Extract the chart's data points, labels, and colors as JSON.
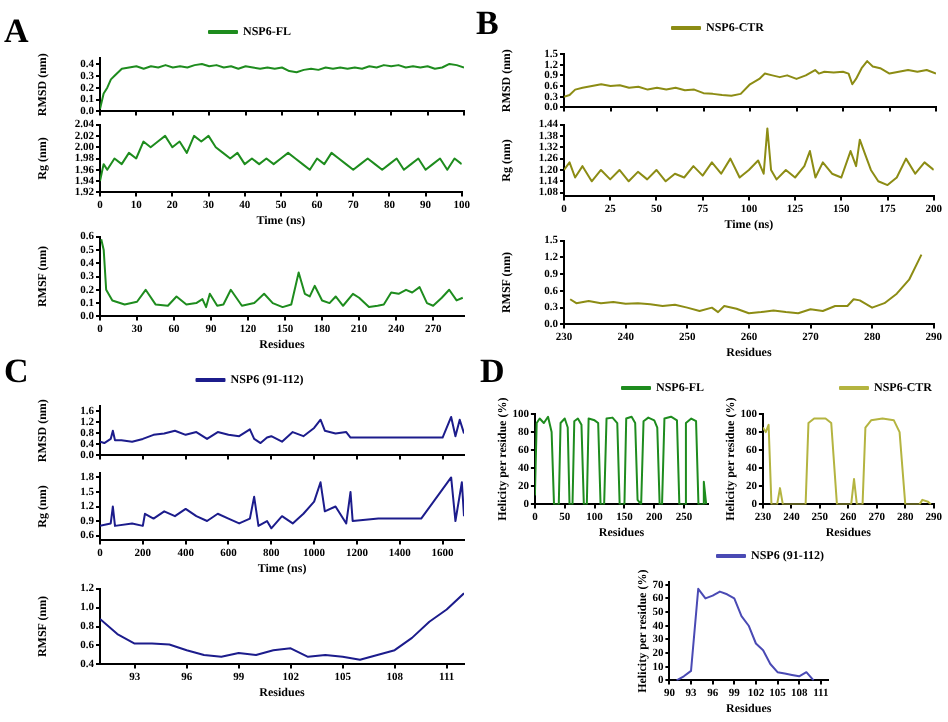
{
  "chart_data": [
    {
      "type": "line",
      "title": "A",
      "legend": "top",
      "tick_labels": "y",
      "ylabel": "RMSD (nm)",
      "xlim": [
        0,
        100
      ],
      "ylim": [
        0,
        0.45
      ],
      "xticks": [
        0,
        10,
        20,
        30,
        40,
        50,
        60,
        70,
        80,
        90,
        100
      ],
      "yticks": [
        {
          "value": 0,
          "label": "0.0"
        },
        0.1,
        0.2,
        0.3,
        0.4
      ],
      "x": [
        0,
        1,
        2,
        3,
        4,
        5,
        6,
        8,
        10,
        12,
        14,
        16,
        18,
        20,
        22,
        24,
        26,
        28,
        30,
        32,
        34,
        36,
        38,
        40,
        42,
        44,
        46,
        48,
        50,
        52,
        54,
        56,
        58,
        60,
        62,
        64,
        66,
        68,
        70,
        72,
        74,
        76,
        78,
        80,
        82,
        84,
        86,
        88,
        90,
        92,
        94,
        96,
        98,
        100
      ],
      "series": [
        {
          "name": "NSP6-FL",
          "color": "#1e8c1e",
          "values": [
            0.02,
            0.15,
            0.2,
            0.27,
            0.3,
            0.33,
            0.36,
            0.37,
            0.38,
            0.36,
            0.38,
            0.37,
            0.39,
            0.37,
            0.38,
            0.37,
            0.39,
            0.4,
            0.38,
            0.39,
            0.37,
            0.38,
            0.36,
            0.38,
            0.37,
            0.36,
            0.37,
            0.36,
            0.37,
            0.34,
            0.33,
            0.35,
            0.36,
            0.35,
            0.37,
            0.36,
            0.37,
            0.36,
            0.37,
            0.36,
            0.38,
            0.37,
            0.39,
            0.38,
            0.39,
            0.37,
            0.38,
            0.37,
            0.38,
            0.36,
            0.37,
            0.4,
            0.39,
            0.37
          ]
        }
      ]
    },
    {
      "type": "line",
      "ylabel": "Rg (nm)",
      "xlabel": "Time (ns)",
      "xlim": [
        0,
        100
      ],
      "xticks": [
        0,
        10,
        20,
        30,
        40,
        50,
        60,
        70,
        80,
        90,
        100
      ],
      "ylim": [
        1.92,
        2.04
      ],
      "yticks": [
        1.92,
        1.94,
        1.96,
        1.98,
        {
          "value": 2,
          "label": "2.00"
        },
        2.02,
        2.04
      ],
      "x": [
        0,
        1,
        2,
        4,
        6,
        8,
        10,
        12,
        14,
        16,
        18,
        20,
        22,
        24,
        26,
        28,
        30,
        32,
        34,
        36,
        38,
        40,
        42,
        44,
        46,
        48,
        50,
        52,
        54,
        56,
        58,
        60,
        62,
        64,
        66,
        68,
        70,
        72,
        74,
        76,
        78,
        80,
        82,
        84,
        86,
        88,
        90,
        92,
        94,
        96,
        98,
        100
      ],
      "series": [
        {
          "color": "#1e8c1e",
          "values": [
            1.94,
            1.97,
            1.96,
            1.98,
            1.97,
            1.99,
            1.98,
            2.01,
            2.0,
            2.01,
            2.02,
            2.0,
            2.01,
            1.99,
            2.02,
            2.01,
            2.02,
            2.0,
            1.99,
            1.98,
            1.99,
            1.97,
            1.98,
            1.97,
            1.98,
            1.97,
            1.98,
            1.99,
            1.98,
            1.97,
            1.96,
            1.98,
            1.97,
            1.99,
            1.98,
            1.97,
            1.96,
            1.97,
            1.98,
            1.97,
            1.96,
            1.97,
            1.98,
            1.96,
            1.97,
            1.98,
            1.96,
            1.97,
            1.98,
            1.96,
            1.98,
            1.97
          ]
        }
      ]
    },
    {
      "type": "line",
      "ylabel": "RMSF (nm)",
      "xlabel": "Residues",
      "xlim": [
        0,
        295
      ],
      "xticks": [
        0,
        30,
        60,
        90,
        120,
        150,
        180,
        210,
        240,
        270
      ],
      "ylim": [
        0,
        0.6
      ],
      "yticks": [
        {
          "value": 0,
          "label": "0.0"
        },
        0.1,
        0.2,
        0.3,
        0.4,
        0.5,
        0.6
      ],
      "x": [
        1,
        3,
        5,
        10,
        20,
        30,
        37,
        45,
        55,
        62,
        70,
        78,
        83,
        86,
        89,
        95,
        100,
        106,
        115,
        125,
        133,
        140,
        148,
        155,
        161,
        166,
        170,
        174,
        180,
        186,
        191,
        197,
        205,
        210,
        218,
        225,
        230,
        236,
        242,
        248,
        253,
        259,
        265,
        270,
        277,
        283,
        289,
        294
      ],
      "series": [
        {
          "color": "#1e8c1e",
          "values": [
            0.58,
            0.5,
            0.2,
            0.12,
            0.09,
            0.11,
            0.2,
            0.09,
            0.08,
            0.15,
            0.09,
            0.1,
            0.13,
            0.07,
            0.17,
            0.08,
            0.09,
            0.2,
            0.08,
            0.1,
            0.17,
            0.1,
            0.07,
            0.09,
            0.33,
            0.17,
            0.15,
            0.23,
            0.12,
            0.1,
            0.15,
            0.08,
            0.17,
            0.14,
            0.07,
            0.08,
            0.09,
            0.18,
            0.17,
            0.2,
            0.18,
            0.22,
            0.1,
            0.08,
            0.14,
            0.2,
            0.12,
            0.14
          ]
        }
      ]
    },
    {
      "type": "line",
      "title": "B",
      "legend": "top",
      "tick_labels": "y",
      "ylabel": "RMSD (nm)",
      "xlim": [
        0,
        200
      ],
      "xticks": [
        0,
        25,
        50,
        75,
        100,
        125,
        150,
        175,
        200
      ],
      "ylim": [
        0,
        1.5
      ],
      "yticks": [
        {
          "value": 0,
          "label": "0.0"
        },
        0.3,
        0.6,
        0.9,
        1.2,
        1.5
      ],
      "x": [
        0,
        3,
        6,
        10,
        15,
        20,
        25,
        30,
        35,
        40,
        45,
        50,
        55,
        60,
        65,
        70,
        75,
        80,
        85,
        90,
        95,
        100,
        105,
        108,
        112,
        116,
        120,
        125,
        130,
        135,
        137,
        140,
        145,
        150,
        153,
        155,
        157,
        160,
        163,
        166,
        170,
        175,
        180,
        185,
        190,
        195,
        200
      ],
      "series": [
        {
          "name": "NSP6-CTR",
          "color": "#8c8c14",
          "values": [
            0.3,
            0.35,
            0.5,
            0.55,
            0.6,
            0.65,
            0.6,
            0.62,
            0.55,
            0.58,
            0.5,
            0.55,
            0.5,
            0.55,
            0.48,
            0.5,
            0.4,
            0.38,
            0.35,
            0.33,
            0.38,
            0.65,
            0.8,
            0.95,
            0.9,
            0.85,
            0.9,
            0.8,
            0.9,
            1.05,
            0.95,
            1.0,
            0.98,
            1.0,
            0.95,
            0.65,
            0.8,
            1.1,
            1.3,
            1.15,
            1.1,
            0.95,
            1.0,
            1.05,
            1.0,
            1.05,
            0.95
          ]
        }
      ]
    },
    {
      "type": "line",
      "ylabel": "Rg (nm)",
      "xlabel": "Time (ns)",
      "xlim": [
        0,
        200
      ],
      "xticks": [
        0,
        25,
        50,
        75,
        100,
        125,
        150,
        175,
        200
      ],
      "ylim": [
        1.06,
        1.44
      ],
      "yticks": [
        1.08,
        1.14,
        {
          "value": 1.2,
          "label": "1.20"
        },
        1.26,
        1.32,
        1.38,
        1.44
      ],
      "x": [
        0,
        3,
        6,
        10,
        15,
        20,
        25,
        30,
        35,
        40,
        45,
        50,
        55,
        60,
        65,
        70,
        75,
        80,
        85,
        90,
        95,
        100,
        105,
        108,
        110,
        112,
        115,
        120,
        125,
        130,
        133,
        136,
        140,
        145,
        150,
        155,
        158,
        160,
        163,
        166,
        170,
        175,
        180,
        185,
        190,
        195,
        200
      ],
      "series": [
        {
          "color": "#8c8c14",
          "values": [
            1.2,
            1.24,
            1.16,
            1.22,
            1.14,
            1.2,
            1.15,
            1.2,
            1.14,
            1.19,
            1.15,
            1.2,
            1.14,
            1.18,
            1.16,
            1.22,
            1.17,
            1.24,
            1.18,
            1.26,
            1.16,
            1.2,
            1.25,
            1.18,
            1.42,
            1.2,
            1.15,
            1.2,
            1.16,
            1.22,
            1.3,
            1.16,
            1.24,
            1.18,
            1.16,
            1.3,
            1.22,
            1.36,
            1.28,
            1.2,
            1.14,
            1.12,
            1.16,
            1.26,
            1.18,
            1.24,
            1.2
          ]
        }
      ]
    },
    {
      "type": "line",
      "ylabel": "RMSF (nm)",
      "xlabel": "Residues",
      "xlim": [
        230,
        290
      ],
      "xticks": [
        230,
        240,
        250,
        260,
        270,
        280,
        290
      ],
      "ylim": [
        0,
        1.5
      ],
      "yticks": [
        {
          "value": 0,
          "label": "0.0"
        },
        0.3,
        0.6,
        0.9,
        1.2,
        1.5
      ],
      "x": [
        231,
        232,
        234,
        236,
        238,
        240,
        242,
        244,
        246,
        248,
        250,
        252,
        254,
        255,
        256,
        258,
        260,
        262,
        264,
        266,
        268,
        270,
        272,
        274,
        276,
        277,
        278,
        280,
        282,
        284,
        286,
        288
      ],
      "series": [
        {
          "color": "#8c8c14",
          "values": [
            0.45,
            0.38,
            0.42,
            0.38,
            0.4,
            0.37,
            0.38,
            0.36,
            0.33,
            0.35,
            0.3,
            0.24,
            0.3,
            0.22,
            0.33,
            0.28,
            0.2,
            0.22,
            0.25,
            0.22,
            0.2,
            0.27,
            0.24,
            0.33,
            0.33,
            0.45,
            0.43,
            0.3,
            0.38,
            0.55,
            0.8,
            1.25
          ]
        }
      ]
    },
    {
      "type": "line",
      "title": "C",
      "legend": "top",
      "tick_labels": "y",
      "ylabel": "RMSD (nm)",
      "xlim": [
        0,
        1700
      ],
      "xticks": [
        0,
        200,
        400,
        600,
        800,
        1000,
        1200,
        1400,
        1600
      ],
      "ylim": [
        0,
        1.8
      ],
      "yticks": [
        {
          "value": 0,
          "label": "0.0"
        },
        0.4,
        0.8,
        1.2,
        1.6
      ],
      "x": [
        0,
        20,
        50,
        60,
        70,
        100,
        150,
        200,
        250,
        300,
        350,
        400,
        450,
        500,
        550,
        600,
        650,
        700,
        720,
        750,
        780,
        800,
        850,
        900,
        950,
        1000,
        1030,
        1050,
        1100,
        1150,
        1170,
        1200,
        1300,
        1400,
        1500,
        1600,
        1640,
        1660,
        1680,
        1700
      ],
      "series": [
        {
          "name": "NSP6 (91-112)",
          "color": "#1c1c8c",
          "values": [
            0.5,
            0.45,
            0.6,
            0.9,
            0.55,
            0.55,
            0.5,
            0.6,
            0.75,
            0.8,
            0.9,
            0.75,
            0.85,
            0.6,
            0.85,
            0.75,
            0.7,
            0.95,
            0.6,
            0.45,
            0.65,
            0.7,
            0.5,
            0.85,
            0.7,
            1.0,
            1.3,
            0.9,
            0.8,
            0.85,
            0.65,
            0.65,
            0.65,
            0.65,
            0.65,
            0.65,
            1.4,
            0.7,
            1.3,
            0.8
          ]
        }
      ]
    },
    {
      "type": "line",
      "ylabel": "Rg (nm)",
      "xlabel": "Time (ns)",
      "xlim": [
        0,
        1700
      ],
      "xticks": [
        0,
        200,
        400,
        600,
        800,
        1000,
        1200,
        1400,
        1600
      ],
      "ylim": [
        0.5,
        1.9
      ],
      "yticks": [
        0.6,
        0.9,
        1.2,
        1.5,
        1.8
      ],
      "x": [
        0,
        50,
        60,
        70,
        150,
        200,
        210,
        250,
        300,
        350,
        400,
        450,
        500,
        550,
        600,
        650,
        700,
        720,
        740,
        780,
        800,
        850,
        900,
        950,
        1000,
        1030,
        1050,
        1100,
        1150,
        1170,
        1180,
        1300,
        1500,
        1640,
        1660,
        1690,
        1700
      ],
      "series": [
        {
          "color": "#1c1c8c",
          "values": [
            0.8,
            0.85,
            1.2,
            0.8,
            0.85,
            0.8,
            1.05,
            0.95,
            1.1,
            1.0,
            1.15,
            1.0,
            0.9,
            1.05,
            0.95,
            0.85,
            0.95,
            1.4,
            0.8,
            0.9,
            0.75,
            1.0,
            0.85,
            1.05,
            1.3,
            1.7,
            1.1,
            1.2,
            0.85,
            1.5,
            0.9,
            0.95,
            0.95,
            1.8,
            0.9,
            1.7,
            1.0
          ]
        }
      ]
    },
    {
      "type": "line",
      "ylabel": "RMSF (nm)",
      "xlabel": "Residues",
      "xlim": [
        91,
        112
      ],
      "xticks": [
        93,
        96,
        99,
        102,
        105,
        108,
        111
      ],
      "ylim": [
        0.4,
        1.2
      ],
      "yticks": [
        0.4,
        0.6,
        0.8,
        {
          "value": 1,
          "label": "1.0"
        },
        1.2
      ],
      "x": [
        91,
        92,
        93,
        94,
        95,
        96,
        97,
        98,
        99,
        100,
        101,
        102,
        103,
        104,
        105,
        106,
        107,
        108,
        109,
        110,
        111,
        112
      ],
      "series": [
        {
          "color": "#1c1c8c",
          "values": [
            0.88,
            0.72,
            0.62,
            0.62,
            0.61,
            0.55,
            0.5,
            0.48,
            0.52,
            0.5,
            0.55,
            0.57,
            0.48,
            0.5,
            0.48,
            0.45,
            0.5,
            0.55,
            0.68,
            0.85,
            0.98,
            1.15
          ]
        }
      ]
    },
    {
      "type": "line",
      "title": "D",
      "legend": "top right",
      "ylabel": "Helicity per residue (%)",
      "xlabel": "Residues",
      "xlim": [
        0,
        290
      ],
      "xticks": [
        0,
        50,
        100,
        150,
        200,
        250
      ],
      "ylim": [
        0,
        100
      ],
      "yticks": [
        0,
        20,
        40,
        60,
        80,
        100
      ],
      "x": [
        0,
        3,
        8,
        15,
        22,
        28,
        32,
        40,
        43,
        50,
        55,
        58,
        63,
        66,
        72,
        78,
        82,
        87,
        90,
        100,
        106,
        110,
        116,
        120,
        130,
        138,
        142,
        150,
        153,
        162,
        168,
        172,
        178,
        182,
        190,
        200,
        205,
        209,
        213,
        217,
        228,
        238,
        242,
        250,
        253,
        262,
        270,
        274,
        280,
        283,
        287
      ],
      "series": [
        {
          "name": "NSP6-FL",
          "color": "#1e8c1e",
          "values": [
            10,
            90,
            95,
            90,
            97,
            80,
            0,
            0,
            90,
            95,
            85,
            0,
            0,
            92,
            95,
            88,
            0,
            0,
            95,
            93,
            90,
            0,
            0,
            95,
            96,
            90,
            0,
            0,
            95,
            97,
            90,
            5,
            0,
            92,
            96,
            93,
            85,
            0,
            0,
            95,
            97,
            93,
            0,
            0,
            90,
            95,
            92,
            0,
            0,
            25,
            0
          ]
        }
      ]
    },
    {
      "type": "line",
      "legend": "top right",
      "ylabel": "Helicity per residue (%)",
      "xlabel": "Residues",
      "xlim": [
        230,
        290
      ],
      "xticks": [
        230,
        240,
        250,
        260,
        270,
        280,
        290
      ],
      "ylim": [
        0,
        100
      ],
      "yticks": [
        0,
        20,
        40,
        60,
        80,
        100
      ],
      "x": [
        230,
        231,
        232,
        233,
        235,
        236,
        237,
        245,
        246,
        248,
        252,
        254,
        256,
        261,
        262,
        263,
        265,
        266,
        268,
        272,
        276,
        278,
        280,
        285,
        286,
        288,
        289
      ],
      "series": [
        {
          "name": "NSP6-CTR",
          "color": "#b4b440",
          "values": [
            85,
            80,
            88,
            0,
            0,
            18,
            0,
            0,
            90,
            95,
            95,
            90,
            0,
            0,
            28,
            0,
            0,
            85,
            93,
            95,
            93,
            80,
            0,
            0,
            5,
            3,
            0
          ]
        }
      ]
    },
    {
      "type": "line",
      "legend": "top right",
      "ylabel": "Helicity per residue (%)",
      "xlabel": "Residues",
      "xlim": [
        90,
        112
      ],
      "xticks": [
        90,
        93,
        96,
        99,
        102,
        105,
        108,
        111
      ],
      "ylim": [
        0,
        72
      ],
      "yticks": [
        0,
        10,
        20,
        30,
        40,
        50,
        60,
        70
      ],
      "x": [
        91,
        92,
        93,
        94,
        95,
        96,
        97,
        98,
        99,
        100,
        101,
        102,
        103,
        104,
        105,
        106,
        107,
        108,
        109,
        110
      ],
      "series": [
        {
          "name": "NSP6 (91-112)",
          "color": "#4a4ab4",
          "values": [
            0,
            3,
            7,
            67,
            60,
            62,
            65,
            63,
            60,
            47,
            40,
            27,
            22,
            12,
            6,
            5,
            4,
            3,
            6,
            0
          ]
        }
      ]
    }
  ]
}
